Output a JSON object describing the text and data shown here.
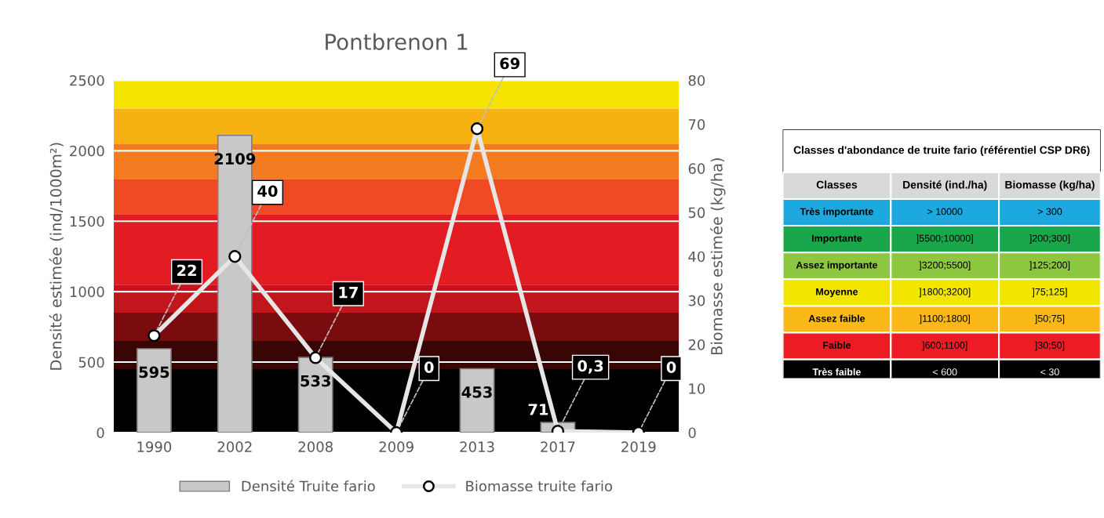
{
  "chart_data": [
    {
      "type": "bar",
      "title": "Pontbrenon 1",
      "categories": [
        "1990",
        "2002",
        "2008",
        "2009",
        "2013",
        "2017",
        "2019"
      ],
      "ylabel": "Densité estimée (ind/1000m²)",
      "y2label": "Biomasse estimée (kg/ha)",
      "ylim": [
        0,
        2500
      ],
      "yticks": [
        0,
        500,
        1000,
        1500,
        2000,
        2500
      ],
      "y2lim": [
        0,
        80
      ],
      "y2ticks": [
        0,
        10,
        20,
        30,
        40,
        50,
        60,
        70,
        80
      ],
      "grid": "y",
      "legend": "bottom",
      "bands": [
        {
          "axis": "y",
          "from": 0,
          "to": 450,
          "color": "#000000"
        },
        {
          "axis": "y",
          "from": 450,
          "to": 650,
          "color": "#3a0505"
        },
        {
          "axis": "y",
          "from": 650,
          "to": 850,
          "color": "#7a0c10"
        },
        {
          "axis": "y",
          "from": 850,
          "to": 1050,
          "color": "#c0161c"
        },
        {
          "axis": "y",
          "from": 1050,
          "to": 1550,
          "color": "#e31b23"
        },
        {
          "axis": "y",
          "from": 1550,
          "to": 1800,
          "color": "#ef4a23"
        },
        {
          "axis": "y",
          "from": 1800,
          "to": 2050,
          "color": "#f47b20"
        },
        {
          "axis": "y",
          "from": 2050,
          "to": 2300,
          "color": "#f6b212"
        },
        {
          "axis": "y",
          "from": 2300,
          "to": 2500,
          "color": "#f5e400"
        }
      ],
      "series": [
        {
          "name": "Densité Truite fario",
          "type": "bar",
          "color": "#c8c8c8",
          "values": [
            595,
            2109,
            533,
            null,
            453,
            71,
            null
          ],
          "value_labels": [
            "595",
            "2109",
            "533",
            null,
            "453",
            "71",
            null
          ]
        },
        {
          "name": "Biomasse truite fario",
          "type": "line",
          "axis": "y2",
          "color": "#e6e6e6",
          "marker": "circle",
          "values": [
            22,
            40,
            17,
            0,
            69,
            0.3,
            0
          ],
          "value_labels": [
            "22",
            "40",
            "17",
            "0",
            "69",
            "0,3",
            "0"
          ]
        }
      ]
    },
    {
      "type": "other",
      "title": "Classes d'abondance de truite fario (référentiel CSP DR6)",
      "annotations": [
        "Classes",
        "Densité (ind./ha)",
        "Biomasse (kg/ha)"
      ],
      "categories": [
        "Très importante",
        "Importante",
        "Assez importante",
        "Moyenne",
        "Assez faible",
        "Faible",
        "Très faible"
      ],
      "cell_labels": [
        [
          "> 10000",
          "> 300"
        ],
        [
          "]5500;10000]",
          "]200;300]"
        ],
        [
          "]3200;5500]",
          "]125;200]"
        ],
        [
          "]1800;3200]",
          "]75;125]"
        ],
        [
          "]1100;1800]",
          "]50;75]"
        ],
        [
          "]600;1100]",
          "]30;50]"
        ],
        [
          "< 600",
          "< 30"
        ]
      ],
      "colors": [
        "#1ba9e0",
        "#1aa64a",
        "#8dc63f",
        "#f2e600",
        "#fbb917",
        "#ed1c24",
        "#000000"
      ]
    }
  ]
}
